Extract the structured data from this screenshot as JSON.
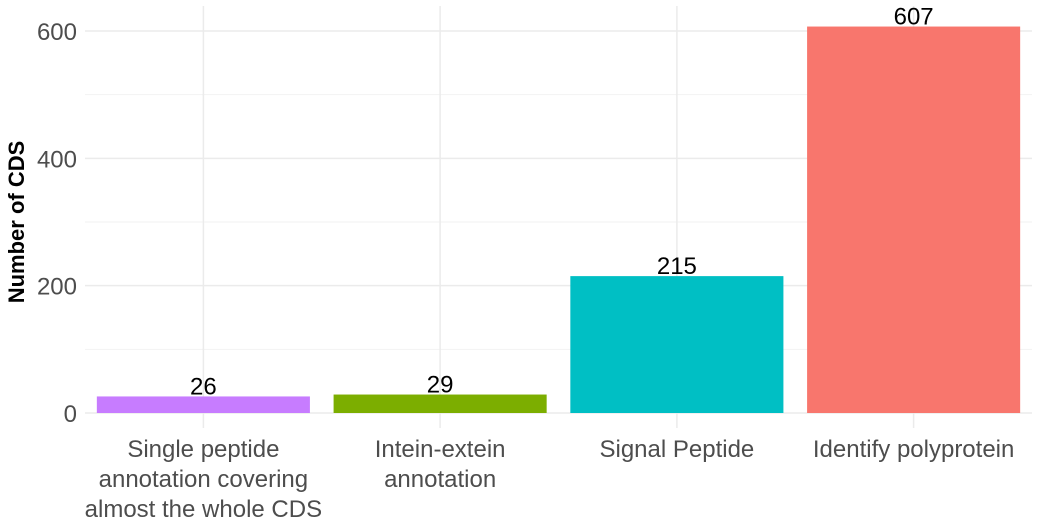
{
  "chart_data": {
    "type": "bar",
    "categories": [
      "Single peptide\nannotation covering\nalmost the whole CDS",
      "Intein-extein\nannotation",
      "Signal Peptide",
      "Identify polyprotein"
    ],
    "values": [
      26,
      29,
      215,
      607
    ],
    "data_labels": [
      "26",
      "29",
      "215",
      "607"
    ],
    "colors": [
      "#C77CFF",
      "#7CAE00",
      "#00BFC4",
      "#F8766D"
    ],
    "title": "",
    "xlabel": "",
    "ylabel": "Number of CDS",
    "ylim": [
      -21,
      638
    ],
    "yticks": [
      0,
      200,
      400,
      600
    ],
    "yticklabels": [
      "0",
      "200",
      "400",
      "600"
    ],
    "grid": true,
    "legend": "none"
  }
}
